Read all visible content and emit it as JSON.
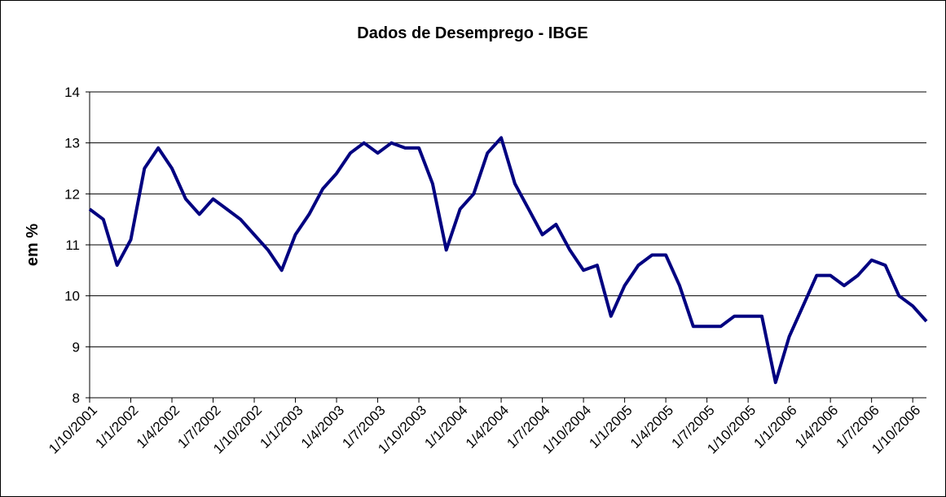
{
  "chart_data": {
    "type": "line",
    "title": "Dados de Desemprego - IBGE",
    "y_label": "em %",
    "categories": [
      "1/10/2001",
      null,
      null,
      "1/1/2002",
      null,
      null,
      "1/4/2002",
      null,
      null,
      "1/7/2002",
      null,
      null,
      "1/10/2002",
      null,
      null,
      "1/1/2003",
      null,
      null,
      "1/4/2003",
      null,
      null,
      "1/7/2003",
      null,
      null,
      "1/10/2003",
      null,
      null,
      "1/1/2004",
      null,
      null,
      "1/4/2004",
      null,
      null,
      "1/7/2004",
      null,
      null,
      "1/10/2004",
      null,
      null,
      "1/1/2005",
      null,
      null,
      "1/4/2005",
      null,
      null,
      "1/7/2005",
      null,
      null,
      "1/10/2005",
      null,
      null,
      "1/1/2006",
      null,
      null,
      "1/4/2006",
      null,
      null,
      "1/7/2006",
      null,
      null,
      "1/10/2006",
      null
    ],
    "values": [
      11.7,
      11.5,
      10.6,
      11.1,
      12.5,
      12.9,
      12.5,
      11.9,
      11.6,
      11.9,
      11.7,
      11.5,
      11.2,
      10.9,
      10.5,
      11.2,
      11.6,
      12.1,
      12.4,
      12.8,
      13.0,
      12.8,
      13.0,
      12.9,
      12.9,
      12.2,
      10.9,
      11.7,
      12.0,
      12.8,
      13.1,
      12.2,
      11.7,
      11.2,
      11.4,
      10.9,
      10.5,
      10.6,
      9.6,
      10.2,
      10.6,
      10.8,
      10.8,
      10.2,
      9.4,
      9.4,
      9.4,
      9.6,
      9.6,
      9.6,
      8.3,
      9.2,
      9.8,
      10.4,
      10.4,
      10.2,
      10.4,
      10.7,
      10.6,
      10.0,
      9.8,
      9.5
    ],
    "color": "#000080",
    "ylim": [
      8,
      14
    ],
    "yticks": [
      8,
      9,
      10,
      11,
      12,
      13,
      14
    ],
    "grid": true
  }
}
